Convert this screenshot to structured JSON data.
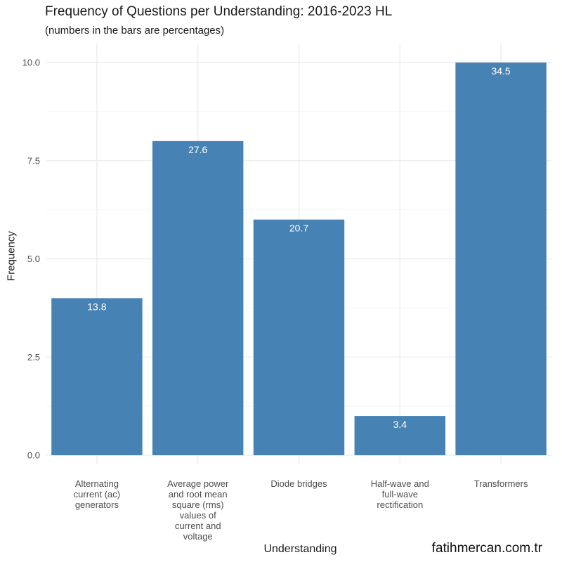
{
  "chart_data": {
    "type": "bar",
    "title": "Frequency of Questions per Understanding: 2016-2023 HL",
    "subtitle": "(numbers in the bars are percentages)",
    "xlabel": "Understanding",
    "ylabel": "Frequency",
    "categories": [
      [
        "Alternating",
        "current (ac)",
        "generators"
      ],
      [
        "Average power",
        "and root mean",
        "square (rms)",
        "values of",
        "current and",
        "voltage"
      ],
      [
        "Diode bridges"
      ],
      [
        "Half-wave and",
        "full-wave",
        "rectification"
      ],
      [
        "Transformers"
      ]
    ],
    "values": [
      4,
      8,
      6,
      1,
      10
    ],
    "bar_labels": [
      "13.8",
      "27.6",
      "20.7",
      "3.4",
      "34.5"
    ],
    "ylim": [
      0,
      10
    ],
    "yticks": [
      "0.0",
      "2.5",
      "5.0",
      "7.5",
      "10.0"
    ],
    "ytick_values": [
      0,
      2.5,
      5,
      7.5,
      10
    ],
    "bar_color": "#4682B4",
    "grid": true
  },
  "watermark": "fatihmercan.com.tr"
}
